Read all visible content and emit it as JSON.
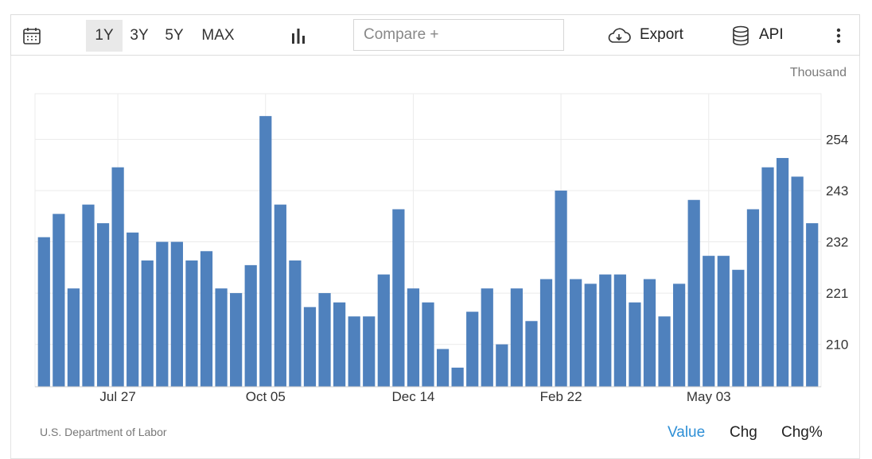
{
  "toolbar": {
    "ranges": [
      "1Y",
      "3Y",
      "5Y",
      "MAX"
    ],
    "active_range": "1Y",
    "compare_placeholder": "Compare +",
    "export_label": "Export",
    "api_label": "API",
    "icons": {
      "calendar": "calendar-icon",
      "chart_type": "bar-chart-icon",
      "export": "cloud-download-icon",
      "api": "database-icon",
      "more": "more-vertical-icon"
    }
  },
  "unit_label": "Thousand",
  "source": "U.S. Department of Labor",
  "view_tabs": [
    "Value",
    "Chg",
    "Chg%"
  ],
  "active_view": "Value",
  "colors": {
    "bar": "#4f81bd",
    "accent": "#2e8fd6",
    "grid": "#ebebeb",
    "axis": "#cccccc"
  },
  "chart_data": {
    "type": "bar",
    "x_tick_labels": [
      "Jul 27",
      "Oct 05",
      "Dec 14",
      "Feb 22",
      "May 03"
    ],
    "x_tick_bar_index": [
      5,
      15,
      25,
      35,
      45
    ],
    "values": [
      233,
      238,
      222,
      240,
      236,
      248,
      234,
      228,
      232,
      232,
      228,
      230,
      222,
      221,
      227,
      259,
      240,
      228,
      218,
      221,
      219,
      216,
      216,
      225,
      239,
      222,
      219,
      209,
      205,
      217,
      222,
      210,
      222,
      215,
      224,
      243,
      224,
      223,
      225,
      225,
      219,
      224,
      216,
      223,
      241,
      229,
      229,
      226,
      239,
      248,
      250,
      246,
      236
    ],
    "y_ticks": [
      210,
      221,
      232,
      243,
      254
    ],
    "ylim": [
      200.9,
      263.8
    ],
    "y_axis_position": "right",
    "grid": true
  }
}
